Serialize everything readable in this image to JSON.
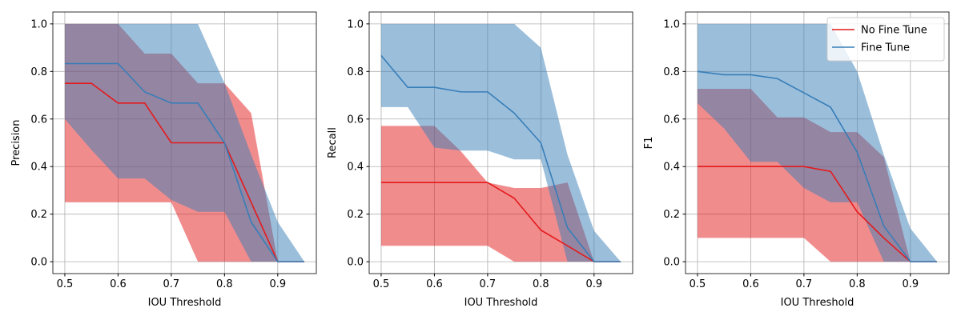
{
  "chart_data": [
    {
      "type": "line",
      "xlabel": "IOU Threshold",
      "ylabel": "Precision",
      "x": [
        0.5,
        0.55,
        0.6,
        0.65,
        0.7,
        0.75,
        0.8,
        0.85,
        0.9,
        0.95
      ],
      "series": [
        {
          "color": "#e41a1c",
          "values": [
            0.75,
            0.75,
            0.667,
            0.667,
            0.5,
            0.5,
            0.5,
            0.25,
            0,
            0
          ],
          "lower": [
            0.25,
            0.25,
            0.25,
            0.25,
            0.25,
            0,
            0,
            0,
            0,
            0
          ],
          "upper": [
            1,
            1,
            1,
            0.875,
            0.875,
            0.75,
            0.75,
            0.625,
            0,
            0
          ]
        },
        {
          "color": "#377eb8",
          "values": [
            0.833,
            0.833,
            0.833,
            0.714,
            0.667,
            0.667,
            0.5,
            0.167,
            0,
            0
          ],
          "lower": [
            0.6,
            0.47,
            0.35,
            0.35,
            0.26,
            0.21,
            0.21,
            0,
            0,
            0
          ],
          "upper": [
            1,
            1,
            1,
            1,
            1,
            1,
            0.75,
            0.45,
            0.167,
            0
          ]
        }
      ],
      "xlim": [
        0.4775,
        0.9725
      ],
      "ylim": [
        -0.05,
        1.05
      ],
      "xticks": [
        0.5,
        0.6,
        0.7,
        0.8,
        0.9
      ],
      "yticks": [
        {
          "value": 0,
          "label": "0.0"
        },
        0.2,
        0.4,
        0.6,
        0.8,
        {
          "value": 1,
          "label": "1.0"
        }
      ],
      "grid": true
    },
    {
      "type": "line",
      "xlabel": "IOU Threshold",
      "ylabel": "Recall",
      "x": [
        0.5,
        0.55,
        0.6,
        0.65,
        0.7,
        0.75,
        0.8,
        0.85,
        0.9,
        0.95
      ],
      "series": [
        {
          "color": "#e41a1c",
          "values": [
            0.333,
            0.333,
            0.333,
            0.333,
            0.333,
            0.267,
            0.133,
            0.067,
            0,
            0
          ],
          "lower": [
            0.067,
            0.067,
            0.067,
            0.067,
            0.067,
            0,
            0,
            0,
            0,
            0
          ],
          "upper": [
            0.571,
            0.571,
            0.571,
            0.464,
            0.333,
            0.31,
            0.31,
            0.333,
            0,
            0
          ]
        },
        {
          "color": "#377eb8",
          "values": [
            0.867,
            0.733,
            0.733,
            0.714,
            0.714,
            0.625,
            0.5,
            0.143,
            0,
            0
          ],
          "lower": [
            0.65,
            0.65,
            0.48,
            0.467,
            0.467,
            0.43,
            0.43,
            0,
            0,
            0
          ],
          "upper": [
            1,
            1,
            1,
            1,
            1,
            1,
            0.9,
            0.45,
            0.13,
            0
          ]
        }
      ],
      "xlim": [
        0.4775,
        0.9725
      ],
      "ylim": [
        -0.05,
        1.05
      ],
      "xticks": [
        0.5,
        0.6,
        0.7,
        0.8,
        0.9
      ],
      "yticks": [
        {
          "value": 0,
          "label": "0.0"
        },
        0.2,
        0.4,
        0.6,
        0.8,
        {
          "value": 1,
          "label": "1.0"
        }
      ],
      "grid": true
    },
    {
      "type": "line",
      "xlabel": "IOU Threshold",
      "ylabel": "F1",
      "x": [
        0.5,
        0.55,
        0.6,
        0.65,
        0.7,
        0.75,
        0.8,
        0.85,
        0.9,
        0.95
      ],
      "series": [
        {
          "name": "No Fine Tune",
          "color": "#e41a1c",
          "values": [
            0.4,
            0.4,
            0.4,
            0.4,
            0.4,
            0.38,
            0.21,
            0.1,
            0,
            0
          ],
          "lower": [
            0.1,
            0.1,
            0.1,
            0.1,
            0.1,
            0,
            0,
            0,
            0,
            0
          ],
          "upper": [
            0.727,
            0.727,
            0.727,
            0.607,
            0.607,
            0.545,
            0.545,
            0.44,
            0,
            0
          ]
        },
        {
          "name": "Fine Tune",
          "color": "#377eb8",
          "values": [
            0.8,
            0.786,
            0.786,
            0.77,
            0.71,
            0.65,
            0.46,
            0.15,
            0,
            0
          ],
          "lower": [
            0.667,
            0.56,
            0.42,
            0.42,
            0.31,
            0.25,
            0.25,
            0,
            0,
            0
          ],
          "upper": [
            1,
            1,
            1,
            1,
            1,
            1,
            0.8,
            0.45,
            0.14,
            0
          ]
        }
      ],
      "xlim": [
        0.4775,
        0.9725
      ],
      "ylim": [
        -0.05,
        1.05
      ],
      "xticks": [
        0.5,
        0.6,
        0.7,
        0.8,
        0.9
      ],
      "yticks": [
        {
          "value": 0,
          "label": "0.0"
        },
        0.2,
        0.4,
        0.6,
        0.8,
        {
          "value": 1,
          "label": "1.0"
        }
      ],
      "grid": true,
      "legend": "upper right"
    }
  ]
}
